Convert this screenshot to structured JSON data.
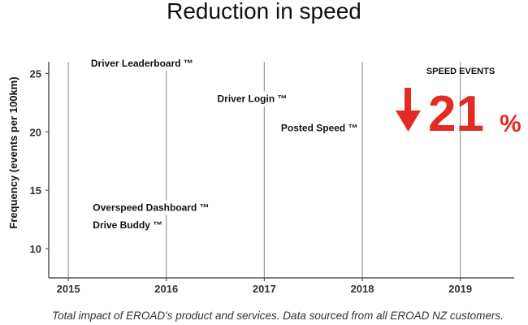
{
  "colors": {
    "accent": "#e32b23",
    "axis": "#555555",
    "gridline": "#9a9a9a",
    "text": "#111111"
  },
  "chart_data": {
    "type": "line",
    "title": "Reduction in speed",
    "ylabel": "Frequency (events per 100km)",
    "xlabel": "",
    "xlim": [
      2014.8,
      2019.55
    ],
    "ylim": [
      7.5,
      26
    ],
    "x_ticks": [
      {
        "value": 2015,
        "label": "2015"
      },
      {
        "value": 2016,
        "label": "2016"
      },
      {
        "value": 2017,
        "label": "2017"
      },
      {
        "value": 2018,
        "label": "2018"
      },
      {
        "value": 2019,
        "label": "2019"
      }
    ],
    "y_ticks": [
      {
        "value": 10,
        "label": "10"
      },
      {
        "value": 15,
        "label": "15"
      },
      {
        "value": 20,
        "label": "20"
      },
      {
        "value": 25,
        "label": "25"
      }
    ],
    "vertical_gridlines": [
      2015,
      2016,
      2017,
      2018,
      2019
    ],
    "grid": "vertical",
    "annotations": [
      {
        "name": "annotation-driver-leaderboard",
        "text": "Driver Leaderboard ™",
        "x": 2015.23,
        "y": 25.6
      },
      {
        "name": "annotation-driver-login",
        "text": "Driver Login ™",
        "x": 2016.52,
        "y": 22.55
      },
      {
        "name": "annotation-posted-speed",
        "text": "Posted Speed ™",
        "x": 2017.17,
        "y": 20.05
      },
      {
        "name": "annotation-overspeed-dashboard",
        "text": "Overspeed Dashboard ™",
        "x": 2015.25,
        "y": 13.25
      },
      {
        "name": "annotation-drive-buddy",
        "text": "Drive Buddy ™",
        "x": 2015.25,
        "y": 11.75
      }
    ],
    "callout": {
      "label": "SPEED EVENTS",
      "direction": "down",
      "value": "21",
      "unit": "%"
    },
    "caption": "Total impact of EROAD's product and services. Data sourced from all EROAD NZ customers."
  }
}
